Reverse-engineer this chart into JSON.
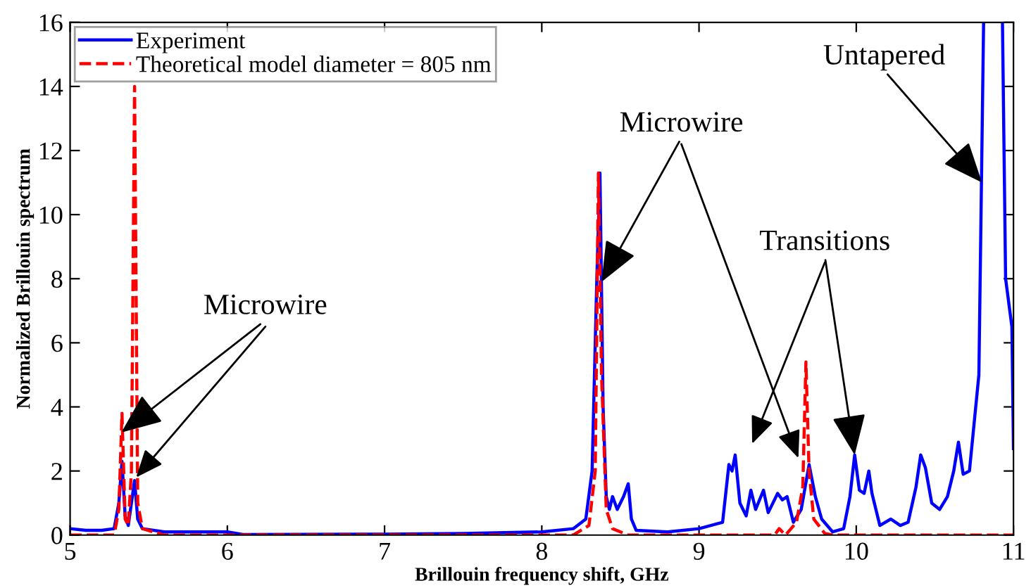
{
  "chart_data": {
    "type": "line",
    "xlabel": "Brillouin frequency shift, GHz",
    "ylabel": "Normalized Brillouin spectrum",
    "xlim": [
      5,
      11
    ],
    "ylim": [
      0,
      16
    ],
    "xticks": [
      5,
      6,
      7,
      8,
      9,
      10,
      11
    ],
    "yticks": [
      0,
      2,
      4,
      6,
      8,
      10,
      12,
      14,
      16
    ],
    "grid": false,
    "legend": "top left",
    "series": [
      {
        "name": "Experiment",
        "color": "#0000ff",
        "line_style": "solid",
        "x": [
          5.0,
          5.1,
          5.2,
          5.28,
          5.31,
          5.33,
          5.35,
          5.37,
          5.41,
          5.43,
          5.46,
          5.6,
          5.8,
          6.0,
          6.1,
          7.0,
          7.5,
          8.0,
          8.2,
          8.28,
          8.32,
          8.35,
          8.37,
          8.39,
          8.41,
          8.43,
          8.45,
          8.48,
          8.52,
          8.55,
          8.57,
          8.6,
          8.8,
          9.0,
          9.15,
          9.19,
          9.21,
          9.23,
          9.26,
          9.3,
          9.33,
          9.36,
          9.41,
          9.44,
          9.5,
          9.53,
          9.56,
          9.6,
          9.65,
          9.7,
          9.74,
          9.78,
          9.85,
          9.92,
          9.96,
          9.99,
          10.02,
          10.05,
          10.08,
          10.1,
          10.15,
          10.22,
          10.28,
          10.33,
          10.38,
          10.41,
          10.44,
          10.48,
          10.53,
          10.58,
          10.62,
          10.65,
          10.68,
          10.72,
          10.78,
          10.81,
          10.87,
          10.93,
          10.95,
          10.99,
          11.0
        ],
        "values": [
          0.2,
          0.15,
          0.15,
          0.2,
          1.0,
          2.3,
          0.6,
          0.3,
          1.7,
          0.5,
          0.2,
          0.1,
          0.1,
          0.1,
          0.02,
          0.03,
          0.05,
          0.1,
          0.2,
          0.5,
          2,
          8,
          11.3,
          4,
          1.2,
          0.8,
          1.2,
          0.8,
          1.2,
          1.6,
          0.5,
          0.15,
          0.1,
          0.2,
          0.4,
          2.2,
          2.0,
          2.5,
          1.0,
          0.6,
          1.4,
          0.8,
          1.4,
          0.7,
          1.3,
          1.1,
          1.2,
          0.4,
          0.8,
          2.2,
          1.2,
          0.5,
          0.1,
          0.2,
          1.2,
          2.5,
          1.4,
          1.3,
          2.0,
          1.3,
          0.3,
          0.5,
          0.3,
          0.4,
          1.5,
          2.5,
          2.1,
          1.0,
          0.8,
          1.2,
          2.0,
          2.9,
          1.9,
          2.0,
          5,
          16,
          null,
          16,
          8,
          6.5,
          2.7
        ]
      },
      {
        "name": "Theoretical model diameter = 805 nm",
        "color": "#ff0000",
        "line_style": "dashed",
        "x": [
          5.0,
          5.28,
          5.31,
          5.33,
          5.35,
          5.37,
          5.39,
          5.41,
          5.43,
          5.46,
          5.6,
          8.2,
          8.3,
          8.34,
          8.36,
          8.38,
          8.41,
          8.45,
          8.55,
          9.48,
          9.51,
          9.55,
          9.62,
          9.66,
          9.68,
          9.7,
          9.73,
          9.8,
          9.85,
          11.0
        ],
        "values": [
          0,
          0,
          0.8,
          3.8,
          0.5,
          0.3,
          2,
          14,
          1,
          0.2,
          0,
          0,
          0.3,
          2,
          11.3,
          5,
          0.8,
          0.2,
          0,
          0,
          0.2,
          0,
          0.4,
          1.5,
          5.4,
          2,
          0.5,
          0.05,
          0,
          0
        ]
      }
    ],
    "annotations": [
      {
        "text": "Microwire",
        "x": 5.326,
        "y": 3.2
      },
      {
        "text": "Microwire",
        "x": 8.38,
        "y": 7.9
      },
      {
        "text": "Transitions",
        "x": 9.99,
        "y": 2.5
      },
      {
        "text": "Untapered",
        "x": 10.8,
        "y": 11
      }
    ]
  }
}
